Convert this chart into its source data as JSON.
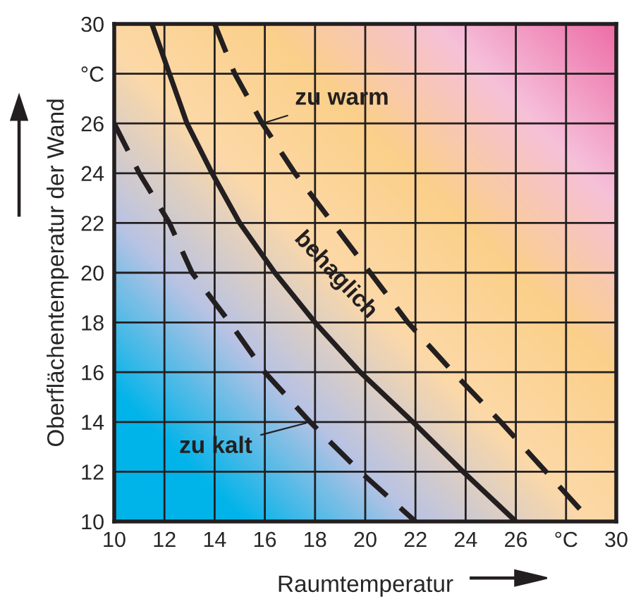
{
  "chart_data": {
    "type": "line",
    "xlabel": "Raumtemperatur",
    "ylabel": "Oberflächentemperatur der Wand",
    "xlim": [
      10,
      30
    ],
    "ylim": [
      10,
      30
    ],
    "xticks": [
      10,
      12,
      14,
      16,
      18,
      20,
      22,
      24,
      26,
      {
        "value": 28,
        "label": "°C"
      },
      30
    ],
    "yticks": [
      10,
      12,
      14,
      16,
      18,
      20,
      22,
      24,
      26,
      {
        "value": 28,
        "label": "°C"
      },
      30
    ],
    "grid": true,
    "legend": false,
    "marker": "none",
    "series": [
      {
        "color": "#231f20",
        "line_style": "dashed",
        "x": [
          14.0,
          14.8,
          15.9,
          17.2,
          18.7,
          20.2,
          21.7,
          23.5,
          25.4,
          27.2,
          29.0
        ],
        "values": [
          30,
          28,
          26,
          24,
          22,
          20,
          18,
          16,
          14,
          12,
          10
        ]
      },
      {
        "color": "#231f20",
        "line_style": "solid",
        "x": [
          11.5,
          12.2,
          12.9,
          13.9,
          15.0,
          16.4,
          18.0,
          19.8,
          21.9,
          23.9,
          26.0
        ],
        "values": [
          30,
          28,
          26,
          24,
          22,
          20,
          18,
          16,
          14,
          12,
          10
        ]
      },
      {
        "color": "#231f20",
        "line_style": "dashed",
        "x": [
          10.0,
          11.0,
          12.2,
          13.1,
          14.6,
          16.0,
          17.8,
          19.8,
          22.0
        ],
        "values": [
          26,
          24,
          22,
          20,
          18,
          16,
          14,
          12,
          10
        ]
      }
    ],
    "annotations": [
      {
        "text": "zu warm",
        "x": 15.9,
        "y": 26
      },
      {
        "text": "behaglich",
        "x": 16.4,
        "y": 20
      },
      {
        "text": "zu kalt",
        "x": 17.8,
        "y": 14
      }
    ]
  }
}
